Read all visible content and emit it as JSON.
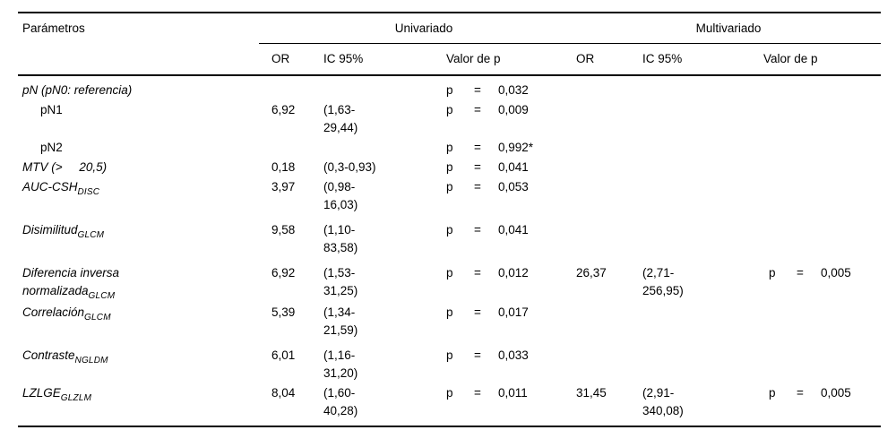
{
  "colors": {
    "background": "#ffffff",
    "text": "#000000",
    "rule": "#000000"
  },
  "table": {
    "columns": {
      "param": "Parámetros",
      "uni_group": "Univariado",
      "multi_group": "Multivariado",
      "or": "OR",
      "ic": "IC 95%",
      "p": "Valor de p"
    },
    "p_label": "p",
    "eq_label": "=",
    "rows": [
      {
        "param": [
          {
            "t": "pN (pN0: referencia)",
            "i": true
          }
        ],
        "indent": false,
        "uni": {
          "or": "",
          "ic": [],
          "p": "0,032"
        },
        "multi": {
          "or": "",
          "ic": [],
          "p": ""
        }
      },
      {
        "param": [
          {
            "t": "pN1"
          }
        ],
        "indent": true,
        "uni": {
          "or": "6,92",
          "ic": [
            "(1,63-",
            "29,44)"
          ],
          "p": "0,009"
        },
        "multi": {
          "or": "",
          "ic": [],
          "p": ""
        }
      },
      {
        "param": [
          {
            "t": "pN2"
          }
        ],
        "indent": true,
        "uni": {
          "or": "",
          "ic": [],
          "p": "0,992*"
        },
        "multi": {
          "or": "",
          "ic": [],
          "p": ""
        }
      },
      {
        "param": [
          {
            "t": "MTV (>     20,5)",
            "i": true
          }
        ],
        "indent": false,
        "uni": {
          "or": "0,18",
          "ic": [
            "(0,3-0,93)"
          ],
          "p": "0,041"
        },
        "multi": {
          "or": "",
          "ic": [],
          "p": ""
        }
      },
      {
        "param": [
          {
            "t": "AUC-CSH",
            "i": true
          },
          {
            "t": "DISC",
            "i": true,
            "sub": true
          }
        ],
        "indent": false,
        "uni": {
          "or": "3,97",
          "ic": [
            "(0,98-",
            "16,03)"
          ],
          "p": "0,053"
        },
        "multi": {
          "or": "",
          "ic": [],
          "p": ""
        }
      },
      {
        "param": [
          {
            "t": "Disimilitud",
            "i": true
          },
          {
            "t": "GLCM",
            "i": true,
            "sub": true
          }
        ],
        "indent": false,
        "gap": true,
        "uni": {
          "or": "9,58",
          "ic": [
            "(1,10-",
            "83,58)"
          ],
          "p": "0,041"
        },
        "multi": {
          "or": "",
          "ic": [],
          "p": ""
        }
      },
      {
        "param": [
          {
            "t": "Diferencia inversa",
            "i": true
          },
          {
            "br": true
          },
          {
            "t": "normalizada",
            "i": true
          },
          {
            "t": "GLCM",
            "i": true,
            "sub": true
          }
        ],
        "indent": false,
        "gap": true,
        "uni": {
          "or": "6,92",
          "ic": [
            "(1,53-",
            "31,25)"
          ],
          "p": "0,012"
        },
        "multi": {
          "or": "26,37",
          "ic": [
            "(2,71-",
            "256,95)"
          ],
          "p": "0,005"
        }
      },
      {
        "param": [
          {
            "t": "Correlación",
            "i": true
          },
          {
            "t": "GLCM",
            "i": true,
            "sub": true
          }
        ],
        "indent": false,
        "uni": {
          "or": "5,39",
          "ic": [
            "(1,34-",
            "21,59)"
          ],
          "p": "0,017"
        },
        "multi": {
          "or": "",
          "ic": [],
          "p": ""
        }
      },
      {
        "param": [
          {
            "t": "Contraste",
            "i": true
          },
          {
            "t": "NGLDM",
            "i": true,
            "sub": true
          }
        ],
        "indent": false,
        "gap": true,
        "uni": {
          "or": "6,01",
          "ic": [
            "(1,16-",
            "31,20)"
          ],
          "p": "0,033"
        },
        "multi": {
          "or": "",
          "ic": [],
          "p": ""
        }
      },
      {
        "param": [
          {
            "t": "LZLGE",
            "i": true
          },
          {
            "t": "GLZLM",
            "i": true,
            "sub": true
          }
        ],
        "indent": false,
        "uni": {
          "or": "8,04",
          "ic": [
            "(1,60-",
            "40,28)"
          ],
          "p": "0,011"
        },
        "multi": {
          "or": "31,45",
          "ic": [
            "(2,91-",
            "340,08)"
          ],
          "p": "0,005"
        }
      }
    ]
  }
}
